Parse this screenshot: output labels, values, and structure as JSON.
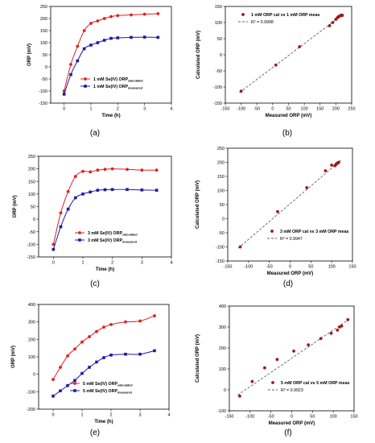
{
  "chart_data": [
    {
      "panel": "(a)",
      "type": "line",
      "xlabel": "Time (h)",
      "ylabel": "ORP (mV)",
      "xlim": [
        -0.5,
        4
      ],
      "ylim": [
        -150,
        250
      ],
      "xticks": [
        0,
        1,
        2,
        3,
        4
      ],
      "yticks": [
        -150,
        -100,
        -50,
        0,
        50,
        100,
        150,
        200,
        250
      ],
      "legend_position": "lower-right",
      "series": [
        {
          "name": "1 mM Se(IV) ORPcalculated",
          "name_main": "1 mM Se(IV) ORP",
          "name_sub": "calculated",
          "color": "#e02020",
          "marker": "circle",
          "x": [
            0,
            0.25,
            0.5,
            0.75,
            1,
            1.25,
            1.5,
            1.75,
            2,
            2.5,
            3,
            3.5
          ],
          "y": [
            -100,
            10,
            85,
            150,
            180,
            190,
            200,
            208,
            212,
            215,
            218,
            220
          ]
        },
        {
          "name": "1 mM Se(IV) ORPmeasured",
          "name_main": "1 mM Se(IV) ORP",
          "name_sub": "measured",
          "color": "#1a1aa6",
          "marker": "square",
          "x": [
            0,
            0.25,
            0.5,
            0.75,
            1,
            1.25,
            1.5,
            1.75,
            2,
            2.5,
            3,
            3.5
          ],
          "y": [
            -113,
            -32,
            25,
            75,
            90,
            100,
            110,
            118,
            120,
            122,
            123,
            122
          ]
        }
      ]
    },
    {
      "panel": "(b)",
      "type": "scatter",
      "xlabel": "Measured ORP (mV)",
      "ylabel": "Calculated ORP (mV)",
      "xlim": [
        -150,
        250
      ],
      "ylim": [
        -150,
        150
      ],
      "xticks": [
        -150,
        -100,
        -50,
        0,
        50,
        100,
        150,
        200,
        250
      ],
      "yticks": [
        -150,
        -100,
        -50,
        0,
        50,
        100,
        150
      ],
      "legend_position": "top-left",
      "series": [
        {
          "name": "1 mM ORP cal vs 1 mM ORP meas",
          "color": "#a01818",
          "marker": "circle",
          "x": [
            -100,
            10,
            85,
            180,
            190,
            200,
            205,
            208,
            212,
            215,
            218,
            220
          ],
          "y": [
            -113,
            -32,
            25,
            90,
            100,
            110,
            115,
            118,
            120,
            122,
            123,
            122
          ]
        }
      ],
      "fit": {
        "label": "R² = 0.9998",
        "from": [
          -105,
          -117
        ],
        "to": [
          225,
          127
        ]
      }
    },
    {
      "panel": "(c)",
      "type": "line",
      "xlabel": "Time (h)",
      "ylabel": "ORP (mV)",
      "xlim": [
        -0.5,
        4
      ],
      "ylim": [
        -150,
        250
      ],
      "xticks": [
        0,
        1,
        2,
        3,
        4
      ],
      "yticks": [
        -150,
        -100,
        -50,
        0,
        50,
        100,
        150,
        200,
        250
      ],
      "legend_position": "lower-right",
      "series": [
        {
          "name": "3 mM Se(IV) ORPcalculated",
          "name_main": "3 mM Se(IV) ORP",
          "name_sub": "calculated",
          "color": "#e02020",
          "marker": "circle",
          "x": [
            0,
            0.25,
            0.5,
            0.75,
            1,
            1.25,
            1.5,
            1.75,
            2,
            2.5,
            3,
            3.5
          ],
          "y": [
            -100,
            25,
            110,
            170,
            190,
            188,
            195,
            198,
            200,
            198,
            195,
            195
          ]
        },
        {
          "name": "3 mM Se(IV) ORPmeasured",
          "name_main": "3 mM Se(IV) ORP",
          "name_sub": "measured",
          "color": "#1a1aa6",
          "marker": "square",
          "x": [
            0,
            0.25,
            0.5,
            0.75,
            1,
            1.25,
            1.5,
            1.75,
            2,
            2.5,
            3,
            3.5
          ],
          "y": [
            -120,
            -30,
            40,
            85,
            100,
            108,
            115,
            117,
            118,
            118,
            116,
            115
          ]
        }
      ]
    },
    {
      "panel": "(d)",
      "type": "scatter",
      "xlabel": "Measured ORP (mV)",
      "ylabel": "Calculated ORP (mV)",
      "xlim": [
        -150,
        150
      ],
      "ylim": [
        -150,
        250
      ],
      "xticks": [
        -150,
        -100,
        -50,
        0,
        50,
        100,
        150
      ],
      "yticks": [
        -150,
        -100,
        -50,
        0,
        50,
        100,
        150,
        200,
        250
      ],
      "legend_position": "lower-right",
      "series": [
        {
          "name": "3 mM ORP cal vs 3 mM ORP meas",
          "color": "#a01818",
          "marker": "circle",
          "x": [
            -120,
            -30,
            40,
            85,
            100,
            108,
            110,
            112,
            114,
            115,
            116,
            117
          ],
          "y": [
            -100,
            25,
            110,
            170,
            190,
            188,
            192,
            195,
            197,
            198,
            199,
            200
          ]
        }
      ],
      "fit": {
        "label": "R² = 0.9947",
        "from": [
          -125,
          -105
        ],
        "to": [
          122,
          207
        ]
      }
    },
    {
      "panel": "(e)",
      "type": "line",
      "xlabel": "Time (h)",
      "ylabel": "ORP (mV)",
      "xlim": [
        -0.5,
        4
      ],
      "ylim": [
        -200,
        400
      ],
      "xticks": [
        0,
        1,
        2,
        3,
        4
      ],
      "yticks": [
        -200,
        -100,
        0,
        100,
        200,
        300,
        400
      ],
      "legend_position": "lower-right",
      "series": [
        {
          "name": "5 mM Se(IV) ORPcalculated",
          "name_main": "5 mM Se(IV) ORP",
          "name_sub": "calculated",
          "color": "#e02020",
          "marker": "circle",
          "x": [
            0,
            0.25,
            0.5,
            0.75,
            1,
            1.25,
            1.5,
            1.75,
            2,
            2.5,
            3,
            3.5
          ],
          "y": [
            -30,
            40,
            105,
            145,
            185,
            215,
            245,
            270,
            285,
            300,
            305,
            335
          ]
        },
        {
          "name": "5 mM Se(IV) ORPmeasured",
          "name_main": "5 mM Se(IV) ORP",
          "name_sub": "measured",
          "color": "#1a1aa6",
          "marker": "square",
          "x": [
            0,
            0.25,
            0.5,
            0.75,
            1,
            1.25,
            1.5,
            1.75,
            2,
            2.5,
            3,
            3.5
          ],
          "y": [
            -125,
            -95,
            -65,
            -35,
            5,
            40,
            70,
            95,
            110,
            115,
            115,
            135
          ]
        }
      ]
    },
    {
      "panel": "(f)",
      "type": "scatter",
      "xlabel": "Measured ORP (mV)",
      "ylabel": "Calculated ORP (mV)",
      "xlim": [
        -150,
        150
      ],
      "ylim": [
        -100,
        400
      ],
      "xticks": [
        -150,
        -100,
        -50,
        0,
        50,
        100,
        150
      ],
      "yticks": [
        -100,
        0,
        100,
        200,
        300,
        400
      ],
      "legend_position": "lower-right",
      "series": [
        {
          "name": "5 mM ORP cal vs 5 mM ORP meas",
          "color": "#a01818",
          "marker": "circle",
          "x": [
            -125,
            -95,
            -65,
            -35,
            5,
            40,
            70,
            95,
            110,
            115,
            120,
            135
          ],
          "y": [
            -30,
            40,
            105,
            145,
            185,
            215,
            245,
            270,
            285,
            300,
            305,
            335
          ]
        }
      ],
      "fit": {
        "label": "R² = 0.9923",
        "from": [
          -130,
          -25
        ],
        "to": [
          140,
          340
        ]
      }
    }
  ]
}
